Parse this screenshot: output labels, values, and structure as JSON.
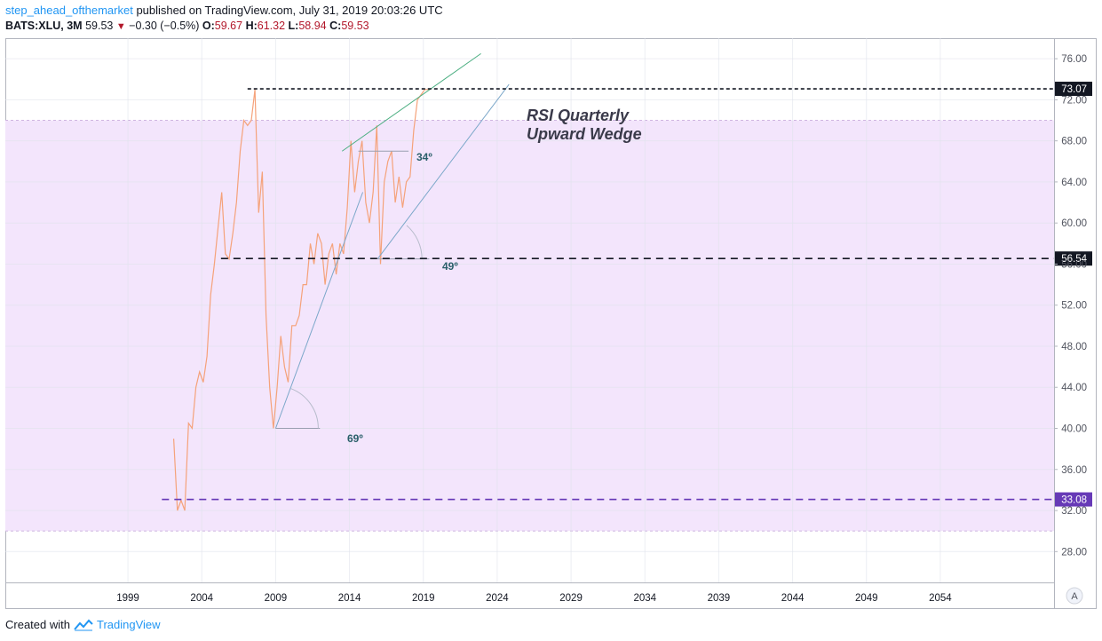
{
  "header": {
    "author": "step_ahead_ofthemarket",
    "published": "published on TradingView.com, July 31, 2019 20:03:26 UTC",
    "symbol": "BATS:XLU, 3M",
    "last": "59.53",
    "change": "−0.30 (−0.5%)",
    "o_label": "O:",
    "o_value": "59.67",
    "h_label": "H:",
    "h_value": "61.32",
    "l_label": "L:",
    "l_value": "58.94",
    "c_label": "C:",
    "c_value": "59.53"
  },
  "footer": {
    "created_with": "Created with",
    "brand": "TradingView"
  },
  "chart_data": {
    "type": "line",
    "ylim": [
      25,
      78
    ],
    "xlim": [
      1990.7,
      2061.7
    ],
    "y_ticks": [
      "28.00",
      "32.00",
      "36.00",
      "40.00",
      "44.00",
      "48.00",
      "52.00",
      "56.00",
      "60.00",
      "64.00",
      "68.00",
      "72.00",
      "76.00"
    ],
    "x_ticks": [
      "1999",
      "2004",
      "2009",
      "2014",
      "2019",
      "2024",
      "2029",
      "2034",
      "2039",
      "2044",
      "2049",
      "2054"
    ],
    "band": {
      "from": 30,
      "to": 70,
      "color": "#f3e5fc"
    },
    "series": [
      {
        "color": "#f5a27a",
        "x": [
          2002.1,
          2002.35,
          2002.6,
          2002.85,
          2003.1,
          2003.35,
          2003.6,
          2003.85,
          2004.1,
          2004.35,
          2004.6,
          2004.85,
          2005.1,
          2005.35,
          2005.6,
          2005.85,
          2006.1,
          2006.35,
          2006.6,
          2006.85,
          2007.1,
          2007.35,
          2007.6,
          2007.85,
          2008.1,
          2008.35,
          2008.6,
          2008.85,
          2009.1,
          2009.35,
          2009.6,
          2009.85,
          2010.1,
          2010.35,
          2010.6,
          2010.85,
          2011.1,
          2011.35,
          2011.6,
          2011.85,
          2012.1,
          2012.35,
          2012.6,
          2012.85,
          2013.1,
          2013.35,
          2013.6,
          2013.85,
          2014.1,
          2014.35,
          2014.6,
          2014.85,
          2015.1,
          2015.35,
          2015.6,
          2015.85,
          2016.1,
          2016.35,
          2016.6,
          2016.85,
          2017.1,
          2017.35,
          2017.6,
          2017.85,
          2018.1,
          2018.35,
          2018.6,
          2018.85,
          2019.1,
          2019.35
        ],
        "y": [
          39,
          32,
          33,
          32,
          40.5,
          40,
          44,
          45.5,
          44.5,
          47,
          53,
          56,
          59.5,
          63,
          57,
          56.5,
          59,
          62,
          67,
          70,
          69.5,
          70,
          73,
          61,
          65,
          51,
          44,
          40,
          44,
          49,
          46,
          44.5,
          50,
          50,
          51,
          54,
          54,
          58,
          56,
          59,
          58,
          54,
          57,
          58,
          55,
          58,
          57,
          61.5,
          68,
          63,
          66,
          68,
          62,
          60,
          63,
          69.5,
          56,
          64,
          66,
          67,
          62,
          64.5,
          61.5,
          64,
          64.5,
          69,
          72,
          72.5,
          73,
          73
        ]
      }
    ],
    "levels": [
      {
        "value": "73.07",
        "color": "#131722",
        "label_bg": "#131722"
      },
      {
        "value": "56.54",
        "color": "#131722",
        "label_bg": "#131722"
      },
      {
        "value": "33.08",
        "color": "#673ab7",
        "label_bg": "#673ab7"
      }
    ],
    "annotations": {
      "title_line1": "RSI Quarterly",
      "title_line2": "Upward Wedge",
      "angle1": "34º",
      "angle2": "49º",
      "angle3": "69º"
    },
    "corner_button": "A"
  }
}
